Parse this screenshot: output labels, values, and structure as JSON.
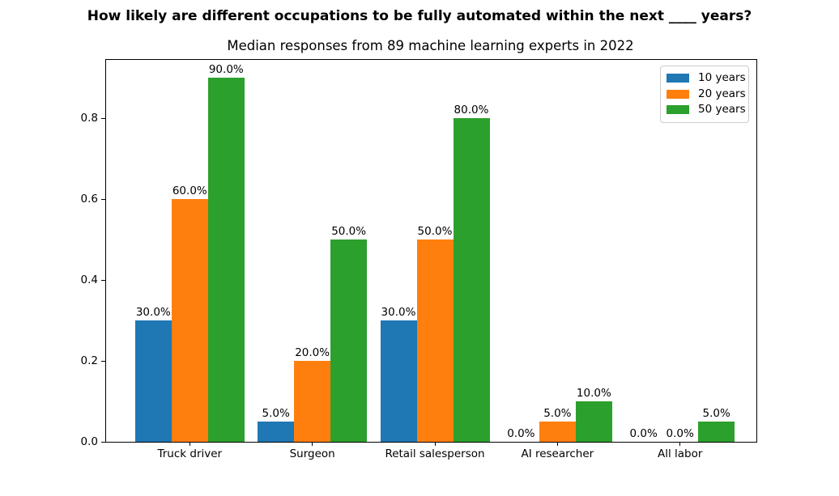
{
  "suptitle": "How likely are different occupations to be fully automated within the next ____ years?",
  "chart_data": {
    "type": "bar",
    "title": "Median responses from 89 machine learning experts in 2022",
    "xlabel": "",
    "ylabel": "",
    "categories": [
      "Truck driver",
      "Surgeon",
      "Retail salesperson",
      "AI researcher",
      "All labor"
    ],
    "series": [
      {
        "name": "10 years",
        "color": "#1f77b4",
        "values": [
          0.3,
          0.05,
          0.3,
          0.0,
          0.0
        ],
        "labels": [
          "30.0%",
          "5.0%",
          "30.0%",
          "0.0%",
          "0.0%"
        ]
      },
      {
        "name": "20 years",
        "color": "#ff7f0e",
        "values": [
          0.6,
          0.2,
          0.5,
          0.05,
          0.0
        ],
        "labels": [
          "60.0%",
          "20.0%",
          "50.0%",
          "5.0%",
          "0.0%"
        ]
      },
      {
        "name": "50 years",
        "color": "#2ca02c",
        "values": [
          0.9,
          0.5,
          0.8,
          0.1,
          0.05
        ],
        "labels": [
          "90.0%",
          "50.0%",
          "80.0%",
          "10.0%",
          "5.0%"
        ]
      }
    ],
    "yticks": [
      0.0,
      0.2,
      0.4,
      0.6,
      0.8
    ],
    "ytick_labels": [
      "0.0",
      "0.2",
      "0.4",
      "0.6",
      "0.8"
    ],
    "ylim": [
      0,
      0.945
    ],
    "grid": false,
    "legend": {
      "position": "upper right",
      "entries": [
        "10 years",
        "20 years",
        "50 years"
      ]
    }
  }
}
